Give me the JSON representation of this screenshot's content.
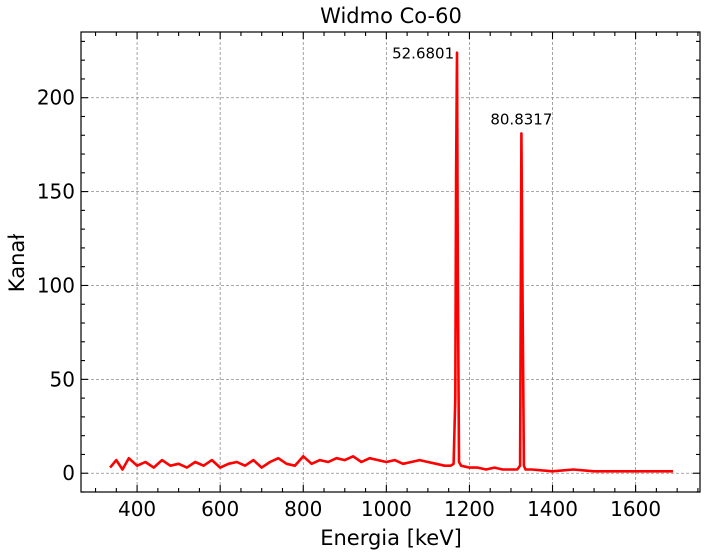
{
  "chart_data": {
    "type": "line",
    "title": "Widmo Co-60",
    "xlabel": "Energia [keV]",
    "ylabel": "Kanał",
    "xlim": [
      265,
      1755
    ],
    "ylim": [
      -10,
      235
    ],
    "xticks": [
      400,
      600,
      800,
      1000,
      1200,
      1400,
      1600
    ],
    "yticks": [
      0,
      50,
      100,
      150,
      200
    ],
    "grid": true,
    "series": [
      {
        "color": "#ff0000",
        "x": [
          335,
          350,
          365,
          380,
          400,
          420,
          440,
          460,
          480,
          500,
          520,
          540,
          560,
          580,
          600,
          620,
          640,
          660,
          680,
          700,
          720,
          740,
          760,
          780,
          800,
          820,
          840,
          860,
          880,
          900,
          920,
          940,
          960,
          980,
          1000,
          1020,
          1040,
          1060,
          1080,
          1100,
          1120,
          1140,
          1155,
          1162,
          1166,
          1168,
          1170,
          1172,
          1175,
          1180,
          1200,
          1220,
          1240,
          1260,
          1280,
          1300,
          1315,
          1322,
          1325,
          1328,
          1331,
          1335,
          1350,
          1400,
          1450,
          1500,
          1550,
          1600,
          1650,
          1690
        ],
        "y": [
          3,
          7,
          2,
          8,
          4,
          6,
          3,
          7,
          4,
          5,
          3,
          6,
          4,
          7,
          3,
          5,
          6,
          4,
          7,
          3,
          6,
          8,
          5,
          4,
          9,
          5,
          7,
          6,
          8,
          7,
          9,
          6,
          8,
          7,
          6,
          7,
          5,
          6,
          7,
          6,
          5,
          4,
          4,
          5,
          40,
          160,
          224,
          110,
          6,
          4,
          3,
          3,
          2,
          3,
          2,
          2,
          2,
          4,
          181,
          90,
          4,
          2,
          2,
          1,
          2,
          1,
          1,
          1,
          1,
          1
        ]
      }
    ],
    "annotations": [
      {
        "text": "52.6801",
        "x": 1168,
        "y": 224
      },
      {
        "text": "80.8317",
        "x": 1325,
        "y": 189
      }
    ]
  }
}
